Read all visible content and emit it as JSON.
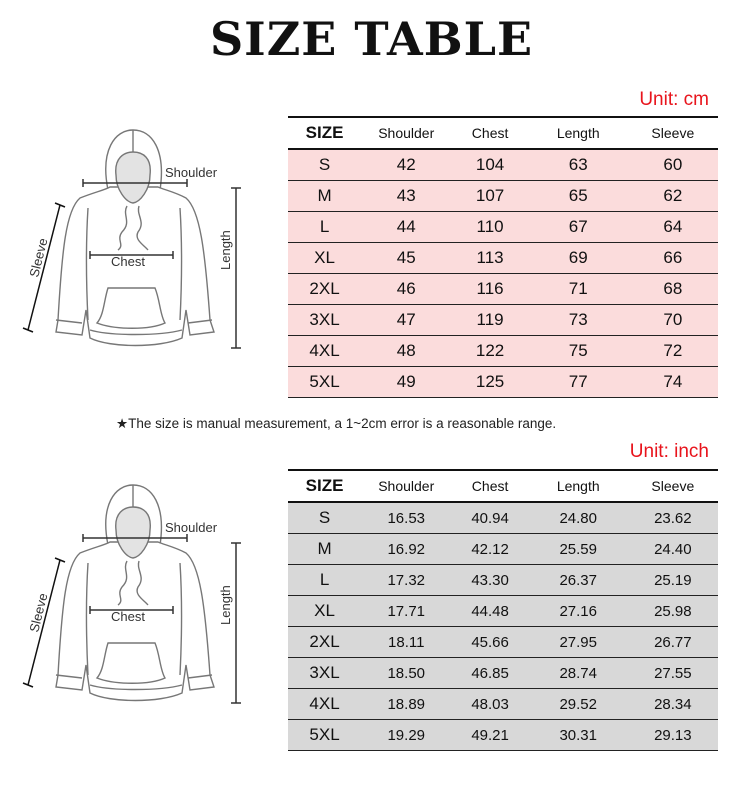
{
  "title": "SIZE TABLE",
  "note": "★The size is manual measurement, a 1~2cm error is a reasonable range.",
  "diagram_labels": {
    "shoulder": "Shoulder",
    "chest": "Chest",
    "length": "Length",
    "sleeve": "Sleeve"
  },
  "colors": {
    "unit_text": "#e8141c",
    "cm_rows": "#fbdcdc",
    "inch_rows": "#d8d8d8"
  },
  "columns": [
    "SIZE",
    "Shoulder",
    "Chest",
    "Length",
    "Sleeve"
  ],
  "table_cm": {
    "unit": "Unit: cm",
    "rows": [
      [
        "S",
        "42",
        "104",
        "63",
        "60"
      ],
      [
        "M",
        "43",
        "107",
        "65",
        "62"
      ],
      [
        "L",
        "44",
        "110",
        "67",
        "64"
      ],
      [
        "XL",
        "45",
        "113",
        "69",
        "66"
      ],
      [
        "2XL",
        "46",
        "116",
        "71",
        "68"
      ],
      [
        "3XL",
        "47",
        "119",
        "73",
        "70"
      ],
      [
        "4XL",
        "48",
        "122",
        "75",
        "72"
      ],
      [
        "5XL",
        "49",
        "125",
        "77",
        "74"
      ]
    ]
  },
  "table_inch": {
    "unit": "Unit: inch",
    "rows": [
      [
        "S",
        "16.53",
        "40.94",
        "24.80",
        "23.62"
      ],
      [
        "M",
        "16.92",
        "42.12",
        "25.59",
        "24.40"
      ],
      [
        "L",
        "17.32",
        "43.30",
        "26.37",
        "25.19"
      ],
      [
        "XL",
        "17.71",
        "44.48",
        "27.16",
        "25.98"
      ],
      [
        "2XL",
        "18.11",
        "45.66",
        "27.95",
        "26.77"
      ],
      [
        "3XL",
        "18.50",
        "46.85",
        "28.74",
        "27.55"
      ],
      [
        "4XL",
        "18.89",
        "48.03",
        "29.52",
        "28.34"
      ],
      [
        "5XL",
        "19.29",
        "49.21",
        "30.31",
        "29.13"
      ]
    ]
  }
}
